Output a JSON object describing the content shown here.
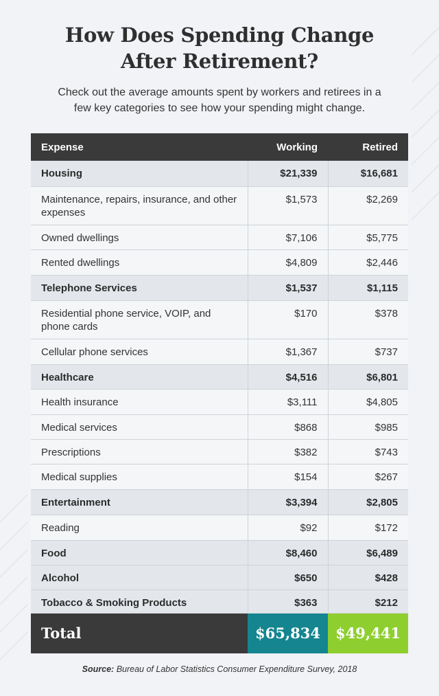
{
  "title_line1": "How Does Spending Change",
  "title_line2": "After Retirement?",
  "subtitle_line1": "Check out the average amounts spent by workers and retirees in a",
  "subtitle_line2": "few key categories to see how your spending might change.",
  "table": {
    "headers": [
      "Expense",
      "Working",
      "Retired"
    ],
    "rows": [
      {
        "bold": true,
        "expense": "Housing",
        "working": "$21,339",
        "retired": "$16,681"
      },
      {
        "bold": false,
        "expense": "Maintenance, repairs, insurance, and other expenses",
        "working": "$1,573",
        "retired": "$2,269",
        "two_line": true
      },
      {
        "bold": false,
        "expense": "Owned dwellings",
        "working": "$7,106",
        "retired": "$5,775"
      },
      {
        "bold": false,
        "expense": "Rented dwellings",
        "working": "$4,809",
        "retired": "$2,446"
      },
      {
        "bold": true,
        "expense": "Telephone Services",
        "working": "$1,537",
        "retired": "$1,115"
      },
      {
        "bold": false,
        "expense": "Residential phone service, VOIP, and phone cards",
        "working": "$170",
        "retired": "$378",
        "two_line": true
      },
      {
        "bold": false,
        "expense": "Cellular phone services",
        "working": "$1,367",
        "retired": "$737"
      },
      {
        "bold": true,
        "expense": "Healthcare",
        "working": "$4,516",
        "retired": "$6,801"
      },
      {
        "bold": false,
        "expense": "Health insurance",
        "working": "$3,111",
        "retired": "$4,805"
      },
      {
        "bold": false,
        "expense": "Medical services",
        "working": "$868",
        "retired": "$985"
      },
      {
        "bold": false,
        "expense": "Prescriptions",
        "working": "$382",
        "retired": "$743"
      },
      {
        "bold": false,
        "expense": "Medical supplies",
        "working": "$154",
        "retired": "$267"
      },
      {
        "bold": true,
        "expense": "Entertainment",
        "working": "$3,394",
        "retired": "$2,805"
      },
      {
        "bold": false,
        "expense": "Reading",
        "working": "$92",
        "retired": "$172"
      },
      {
        "bold": true,
        "expense": "Food",
        "working": "$8,460",
        "retired": "$6,489"
      },
      {
        "bold": true,
        "expense": "Alcohol",
        "working": "$650",
        "retired": "$428"
      },
      {
        "bold": true,
        "expense": "Tobacco & Smoking Products",
        "working": "$363",
        "retired": "$212"
      }
    ],
    "total": {
      "label": "Total",
      "working": "$65,834",
      "retired": "$49,441"
    }
  },
  "source_label": "Source:",
  "source_text": "Bureau of Labor Statistics Consumer Expenditure Survey, 2018",
  "colors": {
    "header": "#3a3a3a",
    "working_total": "#15858f",
    "retired_total": "#8ecf2f"
  }
}
